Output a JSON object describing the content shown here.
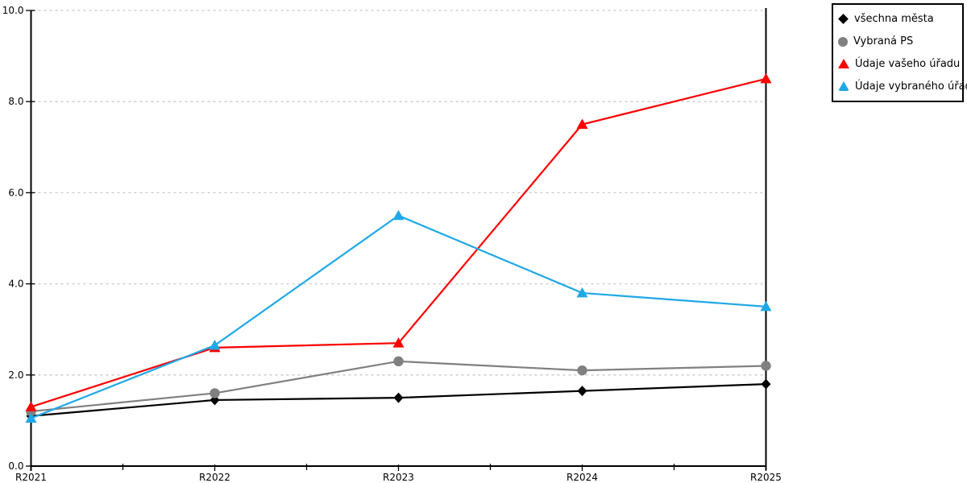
{
  "chart_data": {
    "type": "line",
    "title": "",
    "xlabel": "",
    "ylabel": "",
    "categories": [
      "R2021",
      "R2022",
      "R2023",
      "R2024",
      "R2025"
    ],
    "y_tick_labels": [
      "0.0",
      "2.0",
      "4.0",
      "6.0",
      "8.0",
      "10.0"
    ],
    "y_tick_values": [
      0,
      2,
      4,
      6,
      8,
      10
    ],
    "ylim": [
      0,
      10
    ],
    "grid": "horizontal-dashed",
    "legend_position": "top-right",
    "series": [
      {
        "name": "všechna města",
        "marker": "diamond",
        "color": "#000000",
        "values": [
          1.1,
          1.45,
          1.5,
          1.65,
          1.8
        ]
      },
      {
        "name": "Vybraná PS",
        "marker": "circle",
        "color": "#808080",
        "values": [
          1.2,
          1.6,
          2.3,
          2.1,
          2.2
        ]
      },
      {
        "name": "Údaje vašeho úřadu",
        "marker": "triangle",
        "color": "#fe0000",
        "values": [
          1.3,
          2.6,
          2.7,
          7.5,
          8.5
        ]
      },
      {
        "name": "Údaje vybraného úřadu",
        "marker": "triangle",
        "color": "#1fa8e8",
        "values": [
          1.05,
          2.65,
          5.5,
          3.8,
          3.5
        ]
      }
    ],
    "colors": {
      "grid": "#c8c8c8",
      "axis": "#000000",
      "tick_label": "#000000"
    }
  }
}
